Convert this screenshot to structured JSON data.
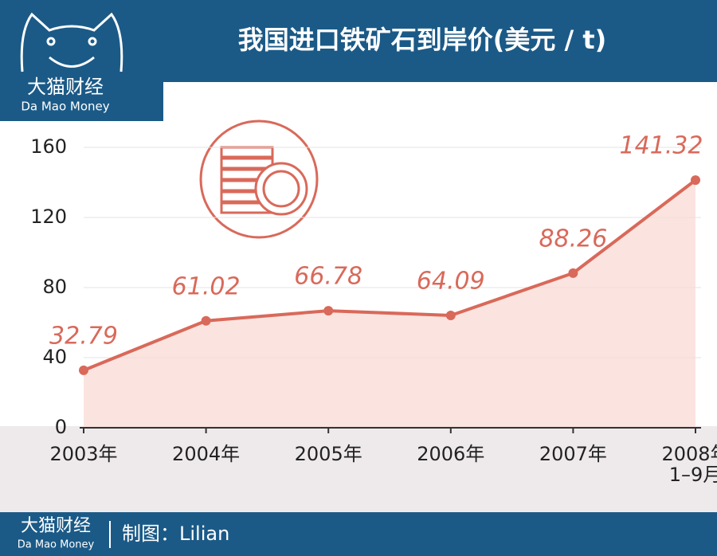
{
  "logo": {
    "name": "大猫财经",
    "name_en": "Da Mao Money"
  },
  "chart_data": {
    "type": "area-line",
    "title": "我国进口铁矿石到岸价(美元 / t)",
    "categories": [
      "2003年",
      "2004年",
      "2005年",
      "2006年",
      "2007年",
      "2008年\n1–9月"
    ],
    "values": [
      32.79,
      61.02,
      66.78,
      64.09,
      88.26,
      141.32
    ],
    "color": "#d9695a",
    "fill": "#f9d9d3",
    "ylim": [
      0,
      160
    ],
    "yticks": [
      0,
      40,
      80,
      120,
      160
    ],
    "grid": true
  },
  "footer": {
    "brand": "大猫财经",
    "brand_en": "Da Mao Money",
    "credit": "制图：Lilian"
  }
}
